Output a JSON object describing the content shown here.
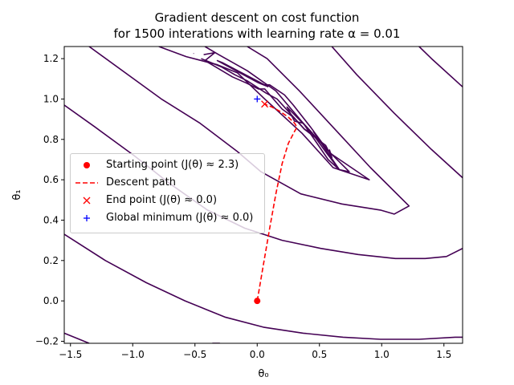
{
  "chart_data": {
    "type": "line",
    "title_lines": [
      "Gradient descent on cost function",
      "for 1500 interations with learning rate α = 0.01"
    ],
    "xlabel": "θ₀",
    "ylabel": "θ₁",
    "xlim": [
      -1.55,
      1.65
    ],
    "ylim": [
      -0.21,
      1.26
    ],
    "xticks": [
      -1.5,
      -1.0,
      -0.5,
      0.0,
      0.5,
      1.0,
      1.5
    ],
    "xtick_labels": [
      "−1.5",
      "−1.0",
      "−0.5",
      "0.0",
      "0.5",
      "1.0",
      "1.5"
    ],
    "yticks": [
      -0.2,
      0.0,
      0.2,
      0.4,
      0.6,
      0.8,
      1.0,
      1.2
    ],
    "ytick_labels": [
      "−0.2",
      "0.0",
      "0.2",
      "0.4",
      "0.6",
      "0.8",
      "1.0",
      "1.2"
    ],
    "grid": false,
    "contour_color": "#440154",
    "contours": [
      [
        [
          0.43,
          0.84
        ],
        [
          0.56,
          0.73
        ],
        [
          0.66,
          0.65
        ],
        [
          0.57,
          0.7
        ],
        [
          0.37,
          0.88
        ],
        [
          0.3,
          0.89
        ],
        [
          0.24,
          0.96
        ],
        [
          0.43,
          0.84
        ]
      ],
      [
        [
          0.45,
          0.84
        ],
        [
          0.66,
          0.65
        ],
        [
          0.74,
          0.64
        ],
        [
          0.56,
          0.75
        ],
        [
          0.43,
          0.86
        ],
        [
          0.29,
          0.97
        ],
        [
          0.22,
          1.02
        ],
        [
          0.1,
          1.07
        ],
        [
          0.06,
          1.07
        ],
        [
          -0.28,
          1.18
        ],
        [
          -0.32,
          1.19
        ],
        [
          0.01,
          1.08
        ],
        [
          0.09,
          1.06
        ]
      ],
      [
        [
          -0.42,
          1.19
        ],
        [
          -0.2,
          1.11
        ],
        [
          -0.09,
          1.08
        ],
        [
          0.01,
          1.05
        ],
        [
          0.06,
          1.05
        ],
        [
          0.2,
          0.95
        ],
        [
          0.29,
          0.91
        ],
        [
          0.38,
          0.85
        ],
        [
          0.44,
          0.83
        ]
      ],
      [
        [
          -0.45,
          1.2
        ],
        [
          -0.29,
          1.16
        ],
        [
          -0.18,
          1.12
        ],
        [
          -0.08,
          1.09
        ],
        [
          0.07,
          1.03
        ],
        [
          0.16,
          1.0
        ],
        [
          0.38,
          0.85
        ],
        [
          0.55,
          0.77
        ],
        [
          0.6,
          0.71
        ],
        [
          0.58,
          0.75
        ]
      ],
      [
        [
          -0.43,
          1.22
        ],
        [
          -0.34,
          1.23
        ],
        [
          -0.42,
          1.19
        ]
      ],
      [
        [
          -0.51,
          1.224
        ],
        [
          -0.51,
          1.226
        ]
      ],
      [
        [
          -0.79,
          1.26
        ],
        [
          -0.57,
          1.21
        ],
        [
          -0.32,
          1.17
        ],
        [
          -0.16,
          1.13
        ],
        [
          0.06,
          1.0
        ],
        [
          0.36,
          0.83
        ],
        [
          0.61,
          0.66
        ],
        [
          0.9,
          0.6
        ],
        [
          0.59,
          0.73
        ],
        [
          0.37,
          0.88
        ],
        [
          0.15,
          1.04
        ],
        [
          -0.08,
          1.14
        ],
        [
          -0.31,
          1.22
        ],
        [
          -0.42,
          1.26
        ]
      ],
      [
        [
          -1.35,
          1.26
        ],
        [
          -0.77,
          1.0
        ],
        [
          -0.46,
          0.88
        ],
        [
          -0.16,
          0.74
        ],
        [
          0.03,
          0.64
        ],
        [
          0.35,
          0.53
        ],
        [
          0.68,
          0.48
        ],
        [
          0.99,
          0.45
        ],
        [
          1.1,
          0.43
        ],
        [
          1.22,
          0.47
        ],
        [
          0.91,
          0.66
        ],
        [
          0.64,
          0.84
        ],
        [
          0.34,
          1.04
        ],
        [
          0.08,
          1.2
        ],
        [
          -0.08,
          1.26
        ]
      ],
      [
        [
          -1.55,
          0.97
        ],
        [
          -1.3,
          0.86
        ],
        [
          -0.99,
          0.72
        ],
        [
          -0.7,
          0.58
        ],
        [
          -0.4,
          0.45
        ],
        [
          -0.1,
          0.36
        ],
        [
          0.2,
          0.3
        ],
        [
          0.51,
          0.26
        ],
        [
          0.81,
          0.23
        ],
        [
          1.11,
          0.21
        ],
        [
          1.35,
          0.21
        ],
        [
          1.52,
          0.22
        ],
        [
          1.65,
          0.26
        ]
      ],
      [
        [
          1.65,
          0.61
        ],
        [
          1.4,
          0.75
        ],
        [
          1.1,
          0.93
        ],
        [
          0.8,
          1.12
        ],
        [
          0.6,
          1.26
        ]
      ],
      [
        [
          -1.55,
          0.33
        ],
        [
          -1.22,
          0.2
        ],
        [
          -0.89,
          0.09
        ],
        [
          -0.58,
          0.0
        ],
        [
          -0.26,
          -0.08
        ],
        [
          0.05,
          -0.13
        ],
        [
          0.37,
          -0.16
        ],
        [
          0.69,
          -0.18
        ],
        [
          0.99,
          -0.19
        ],
        [
          1.3,
          -0.19
        ],
        [
          1.59,
          -0.18
        ],
        [
          1.65,
          -0.18
        ]
      ],
      [
        [
          1.65,
          1.06
        ],
        [
          1.4,
          1.2
        ],
        [
          1.3,
          1.26
        ]
      ],
      [
        [
          -1.55,
          -0.16
        ],
        [
          -1.35,
          -0.21
        ]
      ],
      [
        [
          -0.36,
          -0.21
        ],
        [
          -0.3,
          -0.21
        ]
      ]
    ],
    "start_point": {
      "x": 0.0,
      "y": 0.0,
      "color": "#ff0000"
    },
    "descent_path": {
      "x": [
        0.0,
        0.05,
        0.1,
        0.15,
        0.2,
        0.25,
        0.3,
        0.32,
        0.3,
        0.25,
        0.18,
        0.12,
        0.08,
        0.06
      ],
      "y": [
        0.0,
        0.18,
        0.36,
        0.53,
        0.68,
        0.78,
        0.84,
        0.86,
        0.88,
        0.91,
        0.94,
        0.96,
        0.97,
        0.975
      ],
      "color": "#ff0000"
    },
    "end_point": {
      "x": 0.06,
      "y": 0.975,
      "color": "#ff0000"
    },
    "global_minimum": {
      "x": 0.0,
      "y": 1.0,
      "color": "#0000ff"
    },
    "legend": {
      "location": "center-left",
      "entries": [
        {
          "marker": "dot",
          "color": "#ff0000",
          "label": "Starting point (J(θ) ≈ 2.3)"
        },
        {
          "marker": "dash",
          "color": "#ff0000",
          "label": "Descent path"
        },
        {
          "marker": "x",
          "color": "#ff0000",
          "label": "End point (J(θ) ≈ 0.0)"
        },
        {
          "marker": "plus",
          "color": "#0000ff",
          "label": "Global minimum (J(θ) ≈ 0.0)"
        }
      ]
    }
  }
}
